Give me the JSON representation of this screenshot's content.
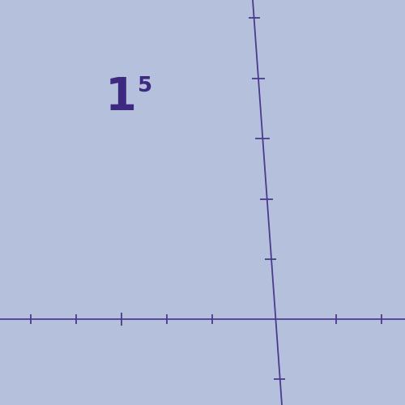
{
  "expression": {
    "base": "1",
    "exponent": "5"
  },
  "colors": {
    "background": "#b4c0dc",
    "axis": "#4a3a8c",
    "text": "#3d2a80"
  }
}
